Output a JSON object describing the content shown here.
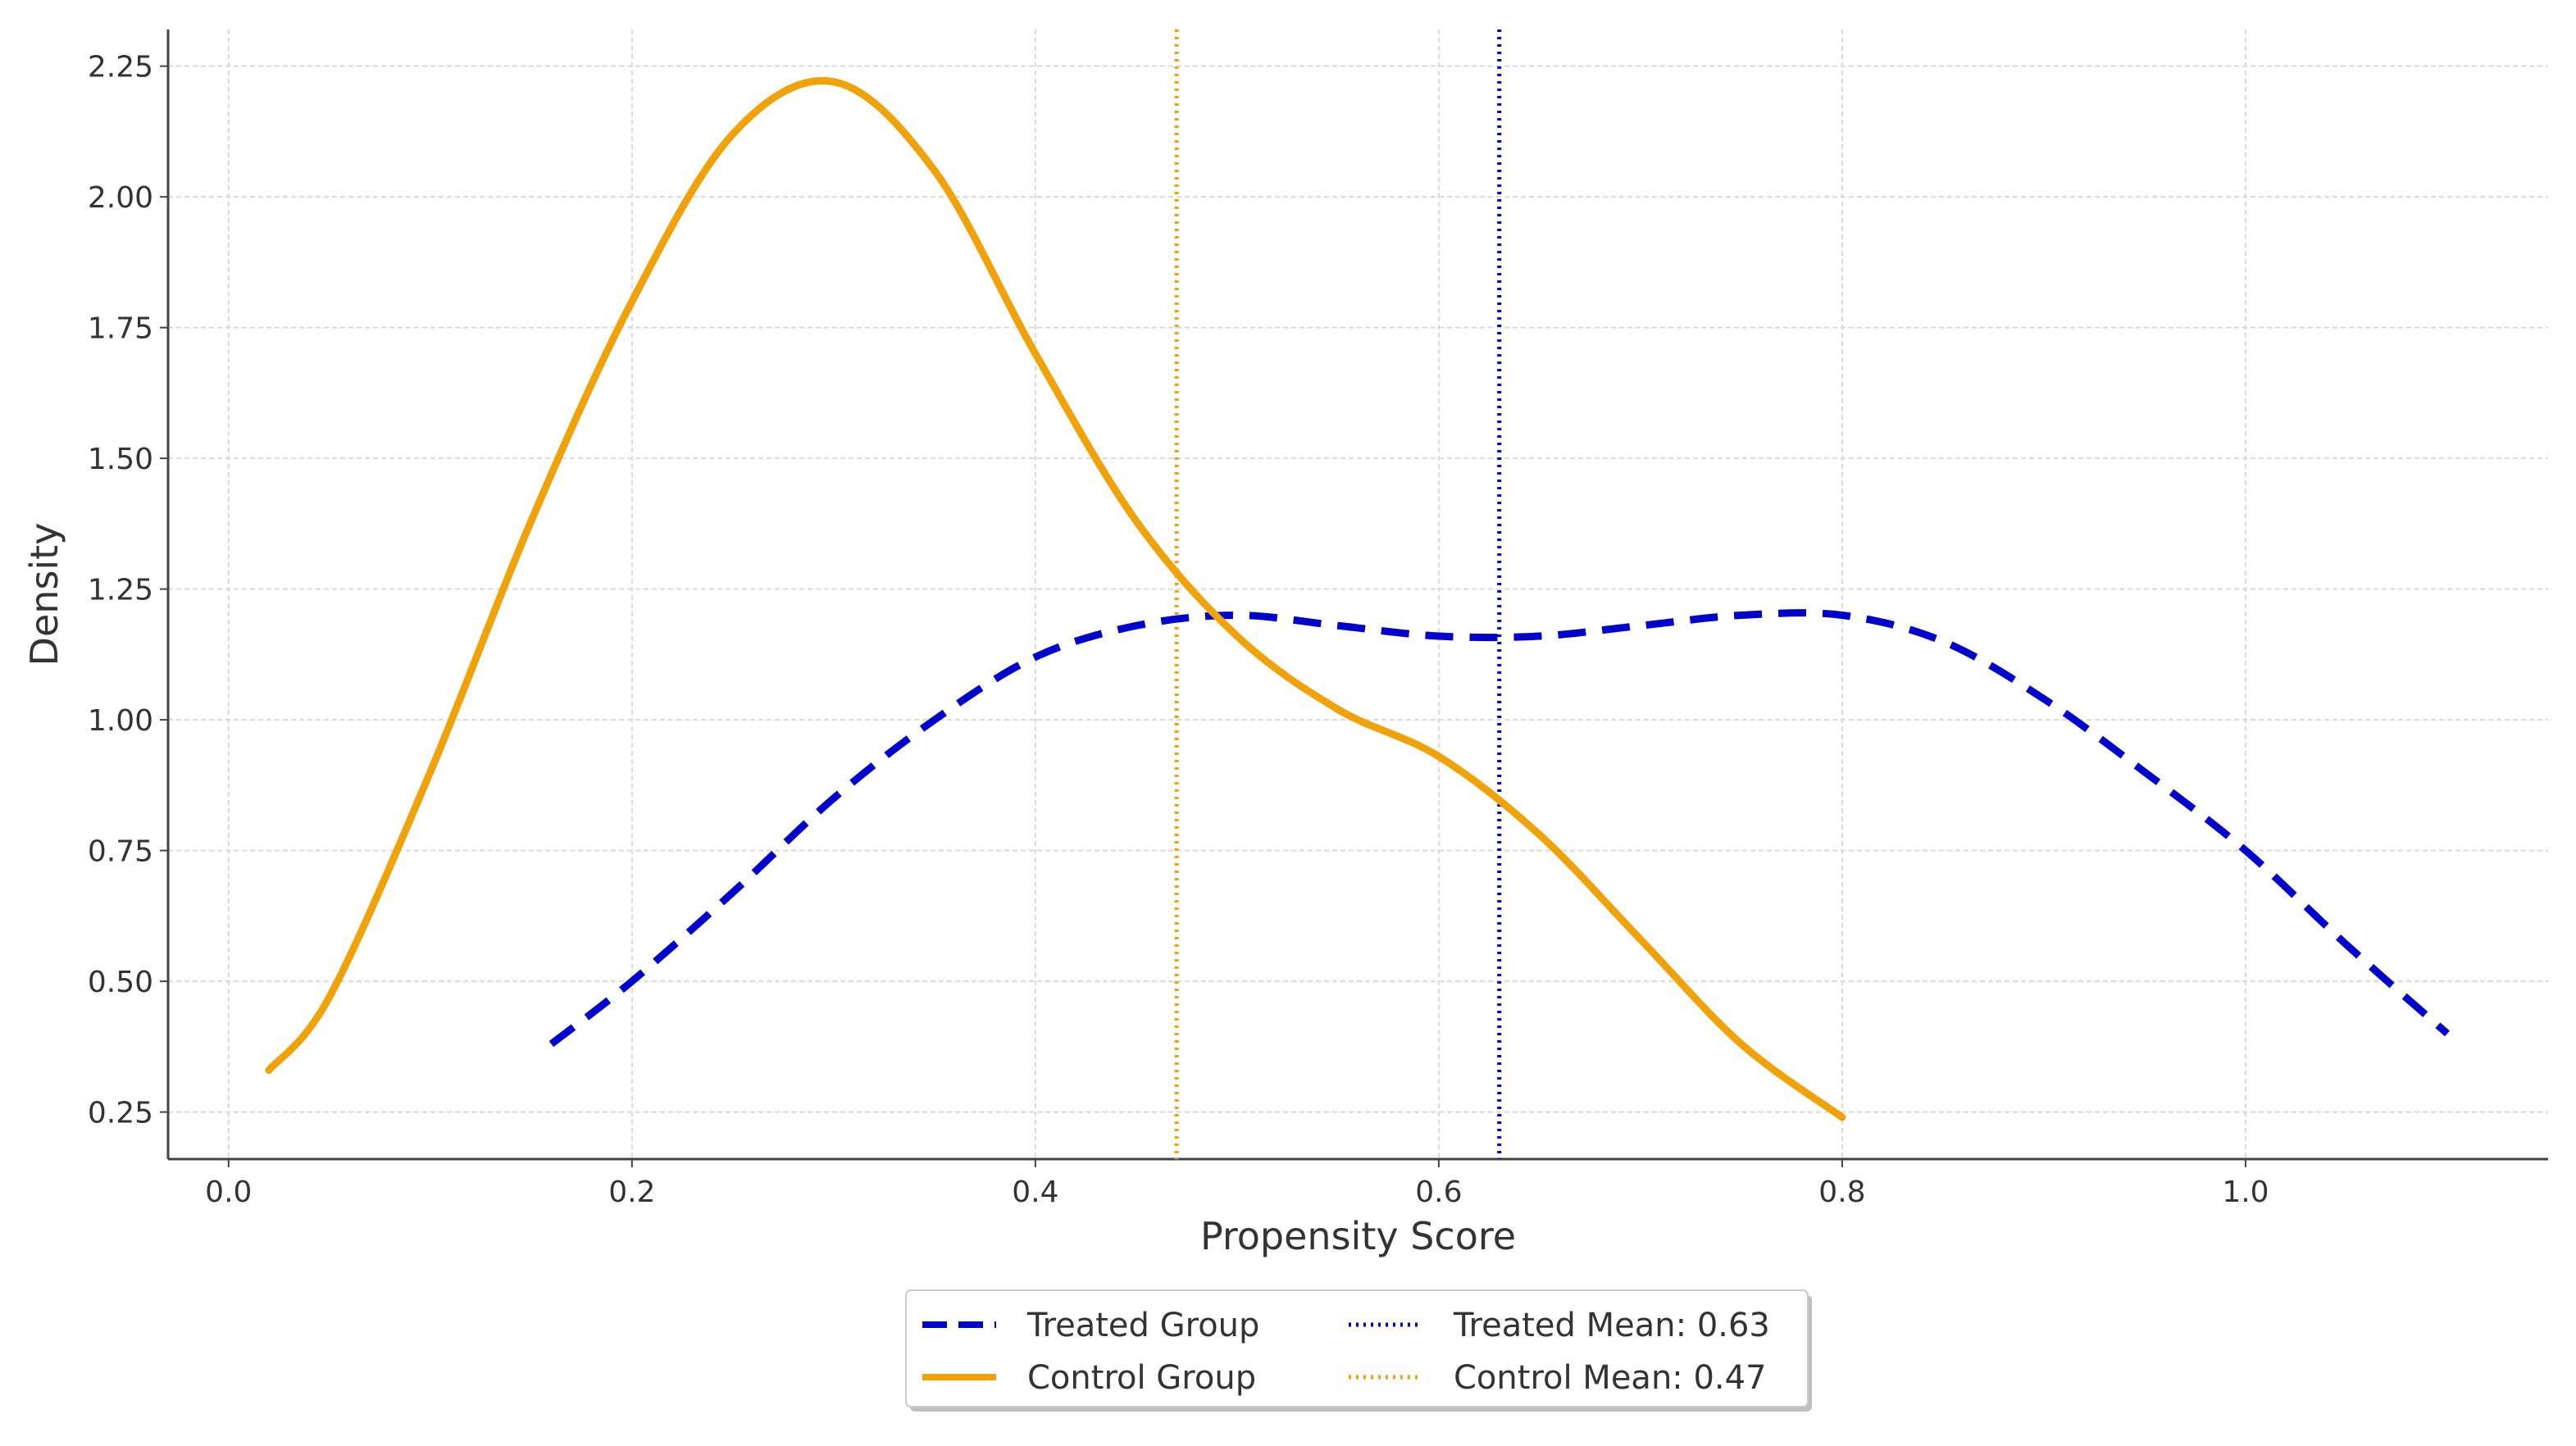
{
  "chart_data": {
    "type": "line",
    "xlabel": "Propensity Score",
    "ylabel": "Density",
    "xlim": [
      -0.03,
      1.15
    ],
    "ylim": [
      0.16,
      2.32
    ],
    "x_ticks": [
      0.0,
      0.2,
      0.4,
      0.6,
      0.8,
      1.0
    ],
    "x_tick_labels": [
      "0.0",
      "0.2",
      "0.4",
      "0.6",
      "0.8",
      "1.0"
    ],
    "y_ticks": [
      0.25,
      0.5,
      0.75,
      1.0,
      1.25,
      1.5,
      1.75,
      2.0,
      2.25
    ],
    "y_tick_labels": [
      "0.25",
      "0.50",
      "0.75",
      "1.00",
      "1.25",
      "1.50",
      "1.75",
      "2.00",
      "2.25"
    ],
    "grid": true,
    "legend_position": "bottom-center, below axis",
    "series": [
      {
        "name": "Treated Group",
        "style": "dashed",
        "color": "#0000cc",
        "x": [
          0.16,
          0.2,
          0.25,
          0.3,
          0.35,
          0.4,
          0.45,
          0.5,
          0.55,
          0.6,
          0.65,
          0.7,
          0.75,
          0.8,
          0.85,
          0.9,
          0.95,
          1.0,
          1.05,
          1.1
        ],
        "y": [
          0.38,
          0.5,
          0.67,
          0.85,
          1.0,
          1.12,
          1.18,
          1.2,
          1.18,
          1.16,
          1.16,
          1.18,
          1.2,
          1.2,
          1.15,
          1.04,
          0.9,
          0.75,
          0.57,
          0.4
        ]
      },
      {
        "name": "Control Group",
        "style": "solid",
        "color": "#f0a20a",
        "x": [
          0.02,
          0.05,
          0.1,
          0.15,
          0.2,
          0.25,
          0.3,
          0.35,
          0.4,
          0.45,
          0.5,
          0.55,
          0.6,
          0.65,
          0.7,
          0.75,
          0.8
        ],
        "y": [
          0.33,
          0.47,
          0.9,
          1.38,
          1.8,
          2.12,
          2.22,
          2.05,
          1.7,
          1.38,
          1.16,
          1.02,
          0.93,
          0.78,
          0.58,
          0.38,
          0.24
        ]
      }
    ],
    "reference_lines": [
      {
        "name": "Treated Mean: 0.63",
        "x": 0.63,
        "style": "dotted",
        "color": "#0000cc"
      },
      {
        "name": "Control Mean: 0.47",
        "x": 0.47,
        "style": "dotted",
        "color": "#f0a20a"
      }
    ]
  }
}
